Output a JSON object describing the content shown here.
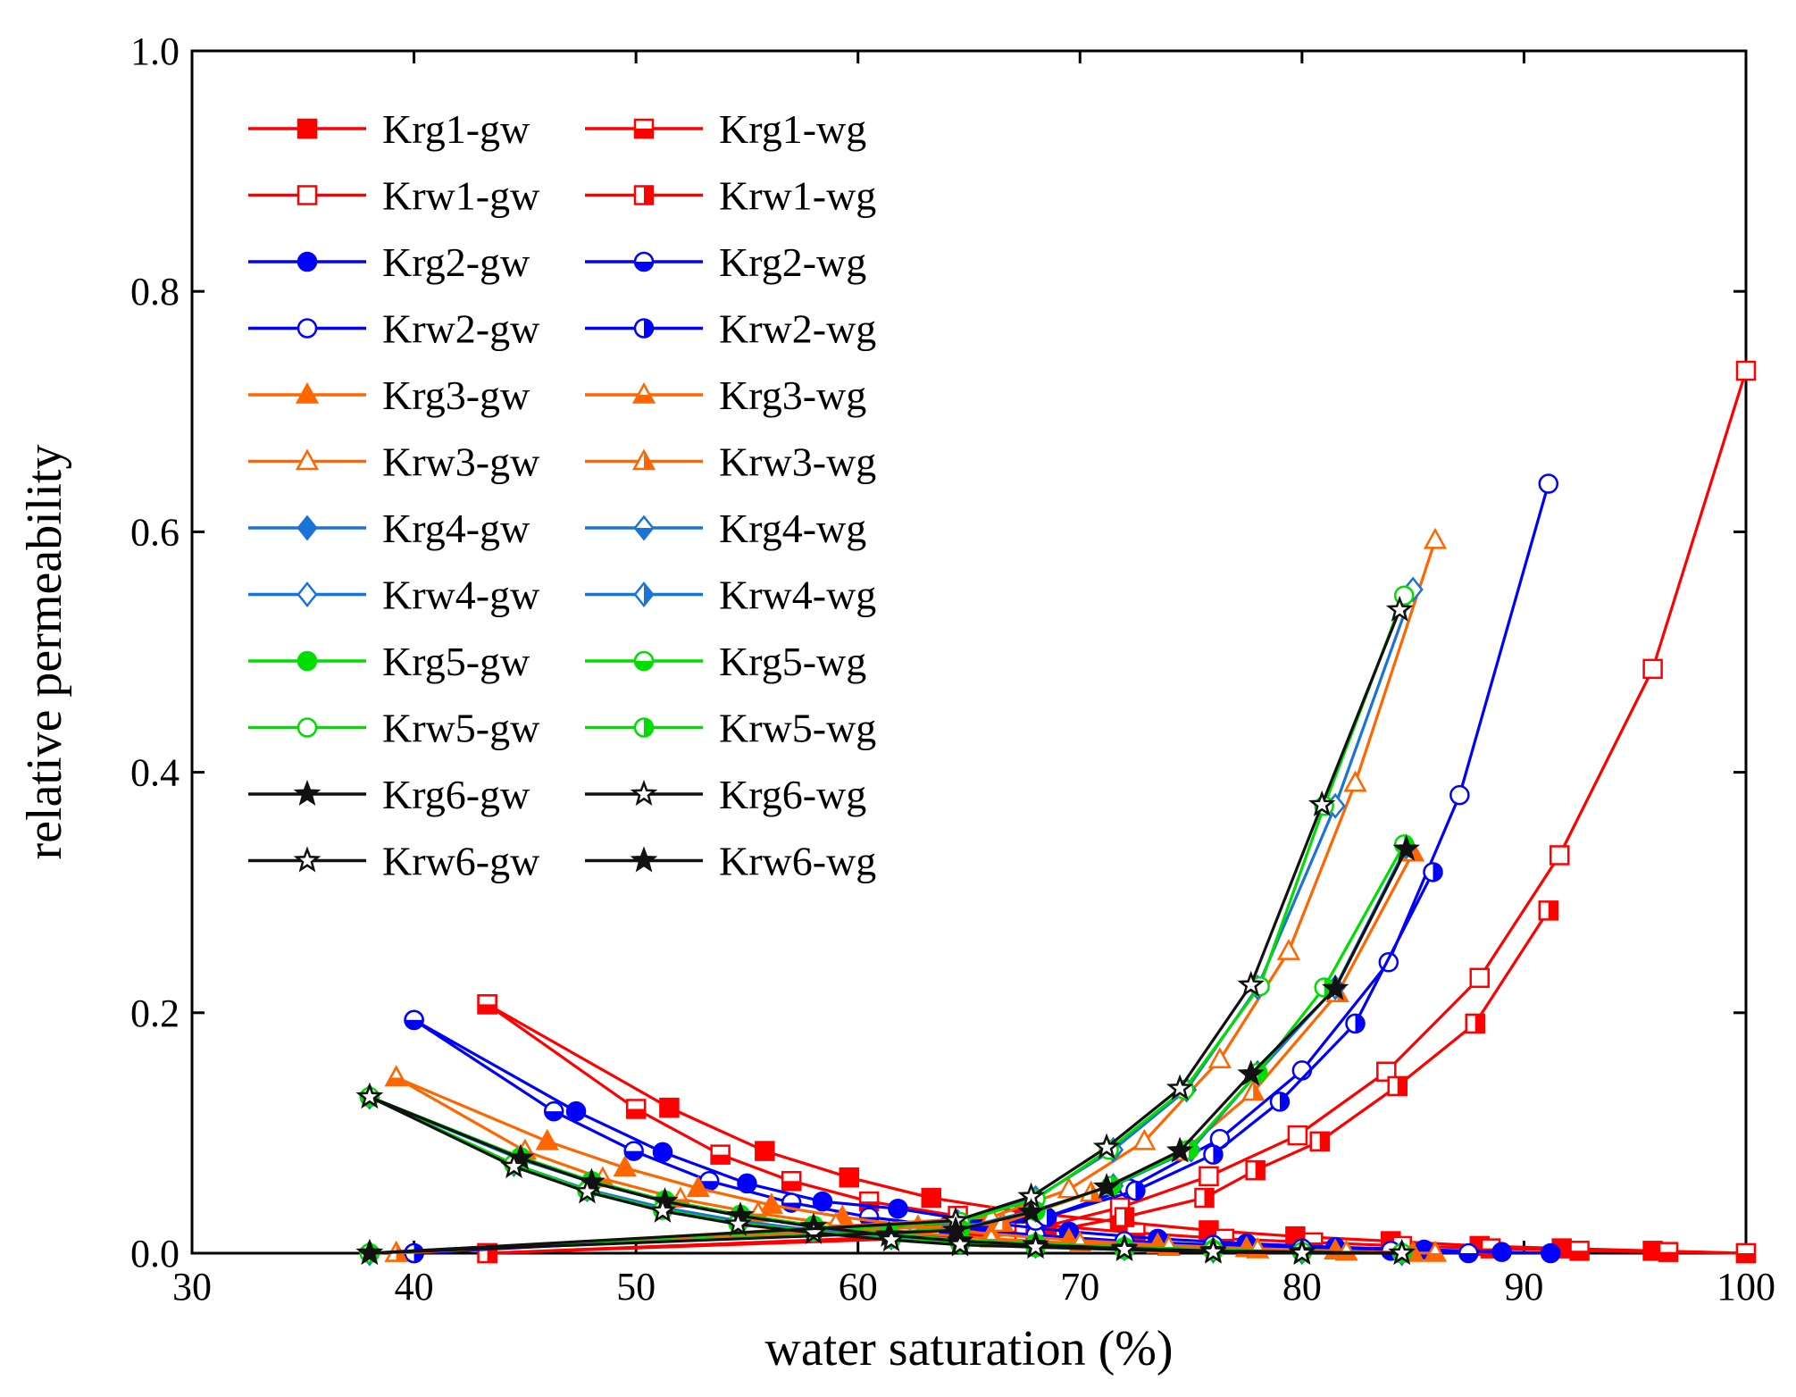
{
  "chart_data": {
    "type": "line",
    "title": "",
    "xlabel": "water saturation (%)",
    "ylabel": "relative permeability",
    "xlim": [
      30,
      100
    ],
    "ylim": [
      0,
      1.0
    ],
    "xticks": [
      "30",
      "40",
      "50",
      "60",
      "70",
      "80",
      "90",
      "100"
    ],
    "yticks": [
      "0.0",
      "0.2",
      "0.4",
      "0.6",
      "0.8",
      "1.0"
    ],
    "grid": false,
    "legend_position": "top-left",
    "series": [
      {
        "name": "Krg1-gw",
        "color": "#ff0000",
        "marker": "square",
        "fill": "filled",
        "x": [
          43.3,
          51.5,
          55.8,
          59.6,
          63.3,
          67.5,
          71.8,
          75.8,
          79.7,
          84.0,
          88.0,
          91.7,
          95.8,
          100
        ],
        "y": [
          0.207,
          0.121,
          0.085,
          0.063,
          0.046,
          0.034,
          0.026,
          0.019,
          0.014,
          0.01,
          0.006,
          0.004,
          0.002,
          0.0
        ]
      },
      {
        "name": "Krg1-wg",
        "color": "#ff0000",
        "marker": "square",
        "fill": "bottom",
        "x": [
          43.3,
          50.0,
          53.8,
          57.0,
          60.5,
          64.5,
          68.5,
          72.5,
          76.5,
          80.5,
          84.5,
          88.5,
          92.5,
          96.5,
          100
        ],
        "y": [
          0.207,
          0.12,
          0.082,
          0.06,
          0.043,
          0.031,
          0.023,
          0.017,
          0.012,
          0.009,
          0.006,
          0.004,
          0.002,
          0.001,
          0.0
        ]
      },
      {
        "name": "Krw1-gw",
        "color": "#ff0000",
        "marker": "square",
        "fill": "open",
        "x": [
          43.3,
          67.5,
          71.8,
          75.8,
          79.8,
          83.8,
          88.0,
          91.6,
          95.8,
          100
        ],
        "y": [
          0.0,
          0.018,
          0.038,
          0.064,
          0.098,
          0.151,
          0.229,
          0.331,
          0.486,
          0.734
        ]
      },
      {
        "name": "Krw1-wg",
        "color": "#ff0000",
        "marker": "square",
        "fill": "right",
        "x": [
          43.3,
          68.0,
          72.0,
          75.6,
          77.9,
          80.8,
          84.3,
          87.8,
          91.1
        ],
        "y": [
          0.0,
          0.016,
          0.03,
          0.046,
          0.069,
          0.093,
          0.139,
          0.191,
          0.285
        ]
      },
      {
        "name": "Krg2-gw",
        "color": "#0000ff",
        "marker": "circle",
        "fill": "filled",
        "x": [
          40.0,
          47.3,
          51.2,
          55.0,
          58.4,
          61.8,
          65.5,
          69.5,
          73.5,
          77.5,
          81.5,
          85.5,
          89.0,
          91.2
        ],
        "y": [
          0.194,
          0.118,
          0.084,
          0.058,
          0.043,
          0.037,
          0.026,
          0.018,
          0.012,
          0.008,
          0.005,
          0.003,
          0.001,
          0.0
        ]
      },
      {
        "name": "Krg2-wg",
        "color": "#0000ff",
        "marker": "circle",
        "fill": "bottom",
        "x": [
          40.0,
          46.3,
          49.9,
          53.3,
          57.0,
          60.5,
          64.0,
          68.0,
          72.0,
          76.0,
          80.0,
          84.0,
          87.5
        ],
        "y": [
          0.194,
          0.118,
          0.085,
          0.06,
          0.042,
          0.03,
          0.022,
          0.015,
          0.01,
          0.007,
          0.004,
          0.002,
          0.0
        ]
      },
      {
        "name": "Krw2-gw",
        "color": "#0000ff",
        "marker": "circle",
        "fill": "open",
        "x": [
          40.0,
          68.0,
          72.2,
          76.3,
          80.0,
          83.9,
          87.1,
          91.1
        ],
        "y": [
          0.0,
          0.027,
          0.054,
          0.095,
          0.152,
          0.242,
          0.381,
          0.64
        ]
      },
      {
        "name": "Krw2-wg",
        "color": "#0000ff",
        "marker": "circle",
        "fill": "right",
        "x": [
          40.0,
          68.5,
          72.5,
          76.0,
          79.0,
          82.4,
          85.9
        ],
        "y": [
          0.0,
          0.03,
          0.052,
          0.082,
          0.126,
          0.191,
          0.317
        ]
      },
      {
        "name": "Krg3-gw",
        "color": "#ff6600",
        "marker": "triangle",
        "fill": "filled",
        "x": [
          39.2,
          46.0,
          49.5,
          52.8,
          56.1,
          59.3,
          62.7,
          66.0,
          69.5,
          73.5,
          77.5,
          81.5,
          85.0
        ],
        "y": [
          0.146,
          0.093,
          0.071,
          0.054,
          0.04,
          0.03,
          0.022,
          0.016,
          0.011,
          0.007,
          0.004,
          0.002,
          0.0
        ]
      },
      {
        "name": "Krg3-wg",
        "color": "#ff6600",
        "marker": "triangle",
        "fill": "bottom",
        "x": [
          39.2,
          45.0,
          48.5,
          52.0,
          55.5,
          59.0,
          62.5,
          66.0,
          70.0,
          74.0,
          78.0,
          82.0,
          86.0
        ],
        "y": [
          0.146,
          0.085,
          0.062,
          0.045,
          0.033,
          0.024,
          0.017,
          0.012,
          0.008,
          0.005,
          0.003,
          0.001,
          0.0
        ]
      },
      {
        "name": "Krw3-gw",
        "color": "#ff6600",
        "marker": "triangle",
        "fill": "open",
        "x": [
          39.2,
          66.0,
          69.5,
          72.9,
          76.3,
          79.4,
          82.4,
          86.0
        ],
        "y": [
          0.0,
          0.03,
          0.053,
          0.093,
          0.161,
          0.251,
          0.391,
          0.593
        ]
      },
      {
        "name": "Krw3-wg",
        "color": "#ff6600",
        "marker": "triangle",
        "fill": "right",
        "x": [
          39.2,
          66.5,
          70.5,
          74.6,
          77.8,
          81.6,
          85.0
        ],
        "y": [
          0.0,
          0.025,
          0.05,
          0.084,
          0.134,
          0.216,
          0.333
        ]
      },
      {
        "name": "Krg4-gw",
        "color": "#1a73d9",
        "marker": "diamond",
        "fill": "filled",
        "x": [
          38.0,
          44.8,
          48.0,
          51.3,
          54.7,
          58.0,
          61.4,
          64.7,
          68.0,
          72.0,
          76.0,
          80.0,
          84.5
        ],
        "y": [
          0.13,
          0.078,
          0.059,
          0.043,
          0.031,
          0.022,
          0.016,
          0.011,
          0.008,
          0.005,
          0.003,
          0.001,
          0.0
        ]
      },
      {
        "name": "Krg4-wg",
        "color": "#1a73d9",
        "marker": "diamond",
        "fill": "bottom",
        "x": [
          38.0,
          44.5,
          47.8,
          51.2,
          54.6,
          58.0,
          61.5,
          64.6,
          68.0,
          72.0,
          76.0,
          80.0,
          84.5
        ],
        "y": [
          0.13,
          0.074,
          0.053,
          0.038,
          0.027,
          0.019,
          0.013,
          0.009,
          0.006,
          0.004,
          0.002,
          0.001,
          0.0
        ]
      },
      {
        "name": "Krw4-gw",
        "color": "#1a73d9",
        "marker": "diamond",
        "fill": "open",
        "x": [
          38.0,
          64.5,
          68.0,
          71.5,
          74.8,
          78.0,
          81.5,
          85.0
        ],
        "y": [
          0.0,
          0.026,
          0.046,
          0.086,
          0.136,
          0.221,
          0.372,
          0.552
        ]
      },
      {
        "name": "Krw4-wg",
        "color": "#1a73d9",
        "marker": "diamond",
        "fill": "right",
        "x": [
          38.0,
          64.5,
          68.0,
          71.5,
          75.0,
          78.0,
          81.5,
          84.7
        ],
        "y": [
          0.0,
          0.02,
          0.036,
          0.056,
          0.086,
          0.15,
          0.221,
          0.338
        ]
      },
      {
        "name": "Krg5-gw",
        "color": "#00dd00",
        "marker": "circle",
        "fill": "filled",
        "x": [
          38.0,
          44.8,
          48.0,
          51.3,
          54.7,
          58.0,
          61.4,
          64.6,
          68.0,
          72.0,
          76.0,
          80.0,
          84.5
        ],
        "y": [
          0.13,
          0.08,
          0.06,
          0.044,
          0.032,
          0.023,
          0.016,
          0.011,
          0.008,
          0.005,
          0.003,
          0.001,
          0.0
        ]
      },
      {
        "name": "Krg5-wg",
        "color": "#00dd00",
        "marker": "circle",
        "fill": "bottom",
        "x": [
          38.0,
          44.5,
          47.8,
          51.2,
          54.6,
          58.0,
          61.5,
          64.6,
          68.0,
          72.0,
          76.0,
          80.0,
          84.5
        ],
        "y": [
          0.13,
          0.074,
          0.052,
          0.036,
          0.025,
          0.018,
          0.012,
          0.008,
          0.005,
          0.003,
          0.002,
          0.001,
          0.0
        ]
      },
      {
        "name": "Krw5-gw",
        "color": "#00dd00",
        "marker": "circle",
        "fill": "open",
        "x": [
          38.0,
          64.6,
          68.0,
          71.3,
          74.7,
          78.1,
          81.0,
          84.6
        ],
        "y": [
          0.0,
          0.026,
          0.045,
          0.086,
          0.136,
          0.222,
          0.372,
          0.547
        ]
      },
      {
        "name": "Krw5-wg",
        "color": "#00dd00",
        "marker": "circle",
        "fill": "right",
        "x": [
          38.0,
          64.6,
          68.0,
          71.4,
          74.9,
          78.0,
          81.0,
          84.6
        ],
        "y": [
          0.0,
          0.02,
          0.035,
          0.056,
          0.086,
          0.15,
          0.221,
          0.34
        ]
      },
      {
        "name": "Krg6-gw",
        "color": "#111111",
        "marker": "star",
        "fill": "filled",
        "x": [
          38.0,
          44.8,
          48.0,
          51.3,
          54.7,
          58.0,
          61.4,
          64.6,
          68.0,
          72.0,
          76.0,
          80.0,
          84.5
        ],
        "y": [
          0.13,
          0.079,
          0.059,
          0.043,
          0.031,
          0.022,
          0.015,
          0.01,
          0.007,
          0.004,
          0.002,
          0.001,
          0.0
        ]
      },
      {
        "name": "Krg6-wg",
        "color": "#111111",
        "marker": "star",
        "fill": "open",
        "x": [
          38.0,
          44.5,
          47.8,
          51.2,
          54.6,
          58.0,
          61.5,
          64.6,
          68.0,
          72.0,
          76.0,
          80.0,
          84.5
        ],
        "y": [
          0.13,
          0.072,
          0.051,
          0.035,
          0.024,
          0.017,
          0.011,
          0.007,
          0.005,
          0.003,
          0.001,
          0.0,
          0.0
        ]
      },
      {
        "name": "Krw6-gw",
        "color": "#111111",
        "marker": "star",
        "fill": "open",
        "x": [
          38.0,
          64.4,
          67.8,
          71.2,
          74.5,
          77.7,
          80.9,
          84.4
        ],
        "y": [
          0.0,
          0.027,
          0.047,
          0.088,
          0.137,
          0.223,
          0.373,
          0.535
        ]
      },
      {
        "name": "Krw6-wg",
        "color": "#111111",
        "marker": "star",
        "fill": "filled",
        "x": [
          38.0,
          64.4,
          67.8,
          71.2,
          74.5,
          77.7,
          81.5,
          84.7
        ],
        "y": [
          0.0,
          0.019,
          0.034,
          0.055,
          0.085,
          0.149,
          0.22,
          0.336
        ]
      }
    ]
  }
}
